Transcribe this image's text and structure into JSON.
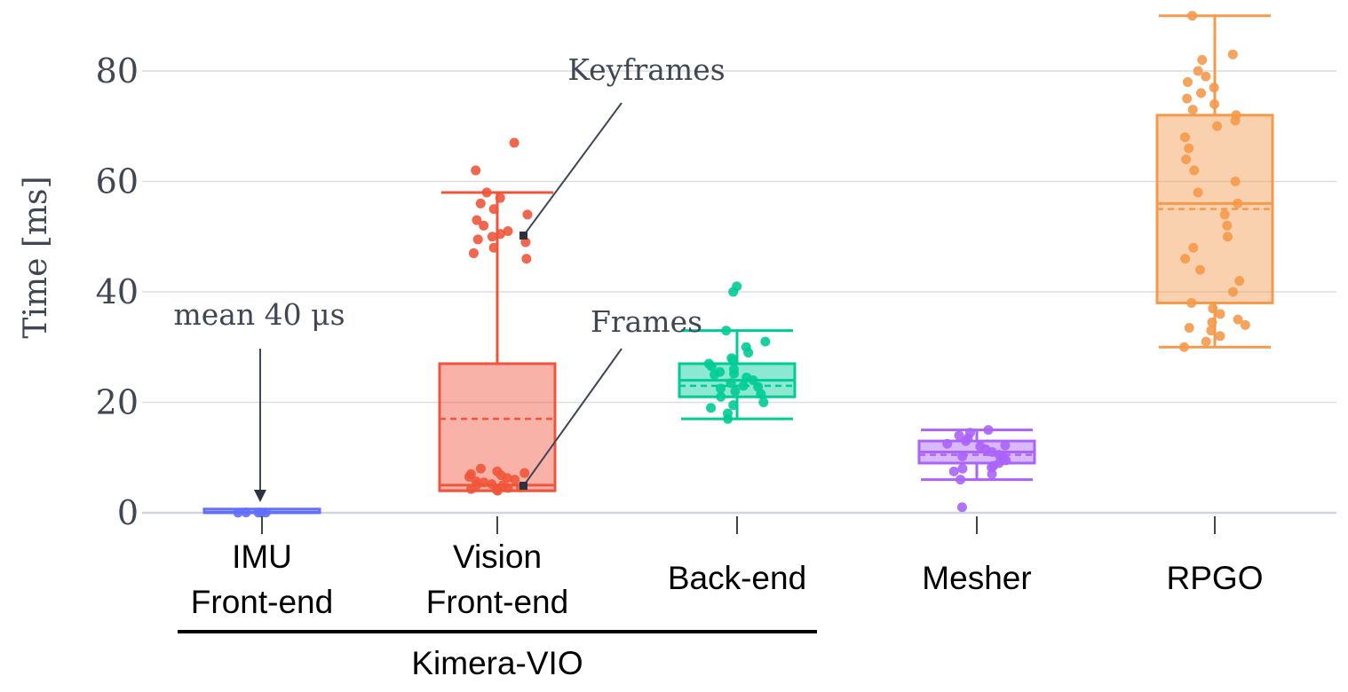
{
  "chart_data": {
    "type": "box",
    "title": "",
    "xlabel": "",
    "ylabel": "Time [ms]",
    "ylim": [
      -2,
      91
    ],
    "yticks": [
      0,
      20,
      40,
      60,
      80
    ],
    "grid": true,
    "categories": [
      {
        "lines": [
          "IMU",
          "Front-end"
        ]
      },
      {
        "lines": [
          "Vision",
          "Front-end"
        ]
      },
      {
        "lines": [
          "Back-end"
        ]
      },
      {
        "lines": [
          "Mesher"
        ]
      },
      {
        "lines": [
          "RPGO"
        ]
      }
    ],
    "group": {
      "label": "Kimera-VIO",
      "spans": [
        0,
        1
      ]
    },
    "series": [
      {
        "color": "#636efa",
        "q1": 0.03,
        "median": 0.04,
        "q3": 0.06,
        "mean": 0.04,
        "whisker_low": 0.02,
        "whisker_high": 0.08,
        "points": [
          0.04,
          0.05,
          0.03,
          0.06,
          0.04
        ]
      },
      {
        "color": "#ef553b",
        "q1": 4,
        "median": 5,
        "q3": 27,
        "mean": 17,
        "whisker_low": 4,
        "whisker_high": 58,
        "points": [
          4,
          4.3,
          4.6,
          5,
          5.2,
          5.5,
          6,
          6.3,
          7,
          7.5,
          8,
          4.5,
          5.7,
          6.8,
          4.2,
          5.1,
          6.5,
          7.2,
          46,
          47,
          48,
          49,
          49.5,
          50,
          50.5,
          51,
          52,
          53,
          54,
          55,
          56,
          57,
          58,
          62,
          67
        ]
      },
      {
        "color": "#00cc96",
        "q1": 21,
        "median": 24,
        "q3": 27,
        "mean": 23,
        "whisker_low": 17,
        "whisker_high": 33,
        "points": [
          17,
          18,
          19,
          20,
          21,
          21.5,
          22,
          22.5,
          23,
          23.5,
          24,
          24.5,
          25,
          25.5,
          26,
          26.5,
          27,
          28,
          29,
          30,
          31,
          33,
          40,
          41,
          19.5,
          22.8,
          25.2,
          27.6
        ]
      },
      {
        "color": "#ab63fa",
        "q1": 9,
        "median": 11,
        "q3": 13,
        "mean": 10.5,
        "whisker_low": 6,
        "whisker_high": 15,
        "points": [
          1,
          6,
          7,
          7.5,
          8,
          8.5,
          9,
          9.5,
          10,
          10.5,
          11,
          11.5,
          12,
          12.5,
          13,
          13.5,
          14,
          14.5,
          15,
          8.2,
          10.2,
          12.2
        ]
      },
      {
        "color": "#f59a4b",
        "q1": 38,
        "median": 56,
        "q3": 72,
        "mean": 55,
        "whisker_low": 30,
        "whisker_high": 90,
        "points": [
          30,
          31,
          32,
          33,
          33.5,
          34,
          34.5,
          35,
          36,
          37,
          38,
          40,
          42,
          44,
          46,
          48,
          50,
          52,
          54,
          56,
          58,
          60,
          62,
          64,
          66,
          68,
          70,
          71,
          72,
          73,
          74,
          75,
          76,
          77,
          78,
          79,
          80,
          82,
          83,
          90
        ]
      }
    ],
    "annotations": [
      {
        "text": "Keyframes",
        "target": {
          "category": 1,
          "value": 50
        }
      },
      {
        "text": "Frames",
        "target": {
          "category": 1,
          "value": 5
        }
      },
      {
        "text": "mean 40 μs",
        "target": {
          "category": 0,
          "value": 2
        }
      }
    ]
  }
}
